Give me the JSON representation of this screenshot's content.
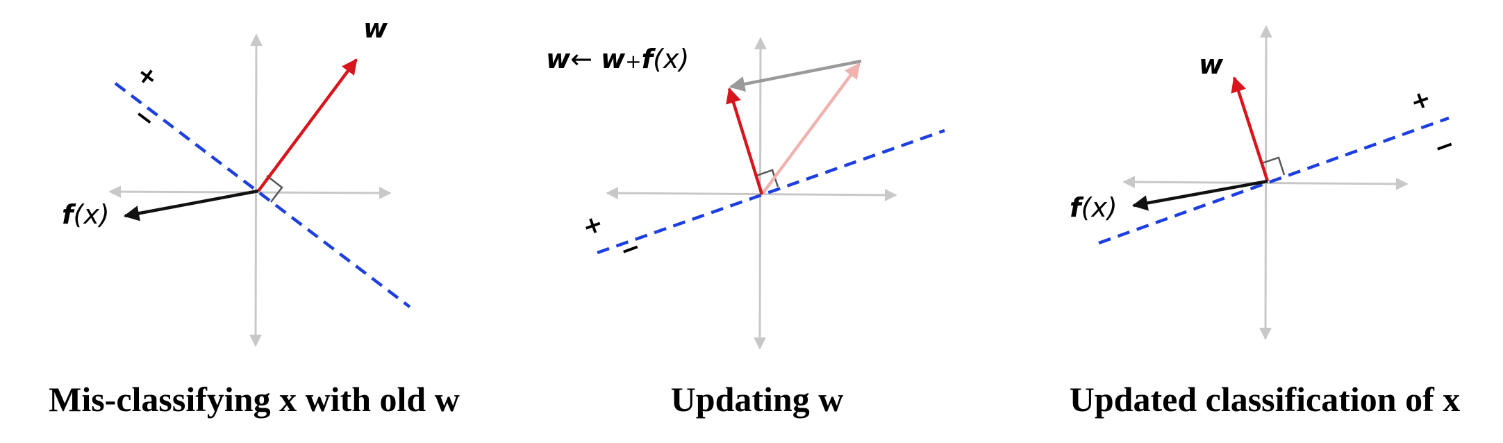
{
  "colors": {
    "axis": "#c8c8c8",
    "weight_vector": "#d8141c",
    "weight_vector_old": "#f0b2ae",
    "feature_vector": "#111111",
    "update_vector": "#9a9a9a",
    "decision_boundary": "#1d3fe0",
    "right_angle": "#555555"
  },
  "panels": [
    {
      "caption": "Mis-classifying x with old w",
      "w_label": "w",
      "fx_label_bold": "f",
      "fx_label_arg": "(x)",
      "plus_label": "+",
      "minus_label": "−"
    },
    {
      "caption": "Updating w",
      "update_label_w": "w",
      "update_label_arrow": "← ",
      "update_label_w2": "w",
      "update_label_plus": "+",
      "update_label_f": "f",
      "update_label_arg": "(x)",
      "plus_label": "+",
      "minus_label": "−"
    },
    {
      "caption": "Updated classification of x",
      "w_label": "w",
      "fx_label_bold": "f",
      "fx_label_arg": "(x)",
      "plus_label": "+",
      "minus_label": "−"
    }
  ]
}
